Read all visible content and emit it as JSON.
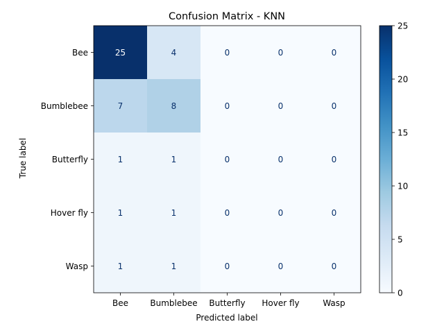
{
  "chart_data": {
    "type": "heatmap",
    "title": "Confusion Matrix - KNN",
    "xlabel": "Predicted label",
    "ylabel": "True label",
    "x_categories": [
      "Bee",
      "Bumblebee",
      "Butterfly",
      "Hover fly",
      "Wasp"
    ],
    "y_categories": [
      "Bee",
      "Bumblebee",
      "Butterfly",
      "Hover fly",
      "Wasp"
    ],
    "values": [
      [
        25,
        4,
        0,
        0,
        0
      ],
      [
        7,
        8,
        0,
        0,
        0
      ],
      [
        1,
        1,
        0,
        0,
        0
      ],
      [
        1,
        1,
        0,
        0,
        0
      ],
      [
        1,
        1,
        0,
        0,
        0
      ]
    ],
    "colormap": "Blues",
    "colorbar": {
      "min": 0,
      "max": 25,
      "ticks": [
        0,
        5,
        10,
        15,
        20,
        25
      ]
    },
    "colors": {
      "low": "#f7fbff",
      "high": "#08306b",
      "text_dark": "#08306b",
      "text_light": "#ffffff"
    },
    "grid": false,
    "legend": "colorbar-right"
  }
}
